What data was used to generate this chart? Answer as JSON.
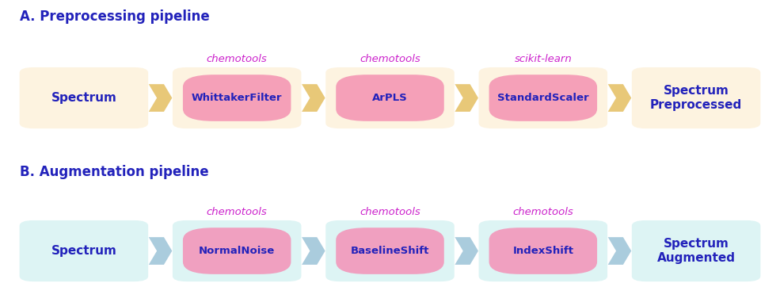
{
  "title_A": "A. Preprocessing pipeline",
  "title_B": "B. Augmentation pipeline",
  "title_color": "#2222bb",
  "title_fontsize": 12,
  "pipeline_A": {
    "bg_color": "#fdf3e0",
    "arrow_color": "#e8c878",
    "library_color": "#cc22cc",
    "inner_box_color": "#f5a0b8",
    "text_color_inner": "#2222bb",
    "nodes": [
      {
        "label": "Spectrum",
        "type": "endpoint",
        "library": null
      },
      {
        "label": "WhittakerFilter",
        "type": "process",
        "library": "chemotools"
      },
      {
        "label": "ArPLS",
        "type": "process",
        "library": "chemotools"
      },
      {
        "label": "StandardScaler",
        "type": "process",
        "library": "scikit-learn"
      },
      {
        "label": "Spectrum\nPreprocessed",
        "type": "endpoint",
        "library": null
      }
    ]
  },
  "pipeline_B": {
    "bg_color": "#ddf4f4",
    "arrow_color": "#aaccdd",
    "library_color": "#cc22cc",
    "inner_box_color": "#f0a0c0",
    "text_color_inner": "#2222bb",
    "nodes": [
      {
        "label": "Spectrum",
        "type": "endpoint",
        "library": null
      },
      {
        "label": "NormalNoise",
        "type": "process",
        "library": "chemotools"
      },
      {
        "label": "BaselineShift",
        "type": "process",
        "library": "chemotools"
      },
      {
        "label": "IndexShift",
        "type": "process",
        "library": "chemotools"
      },
      {
        "label": "Spectrum\nAugmented",
        "type": "endpoint",
        "library": null
      }
    ]
  },
  "endpoint_text_color": "#2222bb",
  "endpoint_text_fontsize": 11,
  "process_text_fontsize": 9.5,
  "library_fontsize": 9.5,
  "figsize": [
    9.85,
    3.86
  ],
  "dpi": 100
}
